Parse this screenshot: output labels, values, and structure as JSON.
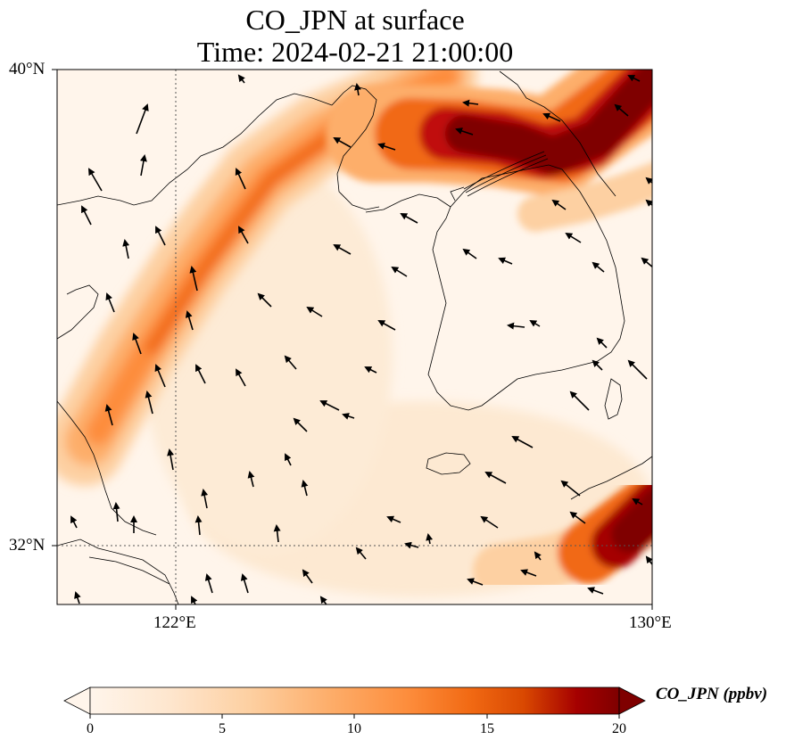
{
  "title": {
    "line1": "CO_JPN at surface",
    "line2": "Time: 2024-02-21 21:00:00"
  },
  "map": {
    "lon_range": [
      119,
      130
    ],
    "lat_range": [
      31,
      40
    ],
    "gridline_lon": 122,
    "gridline_lat": 32,
    "lon_ticks": [
      "122°E",
      "130°E"
    ],
    "lat_ticks": [
      "40°N",
      "32°N"
    ]
  },
  "colorbar": {
    "label": "CO_JPN (ppbv)",
    "ticks": [
      "0",
      "5",
      "10",
      "15",
      "20"
    ],
    "range": [
      0,
      20
    ],
    "extend": "both",
    "colors": [
      "#fff5eb",
      "#fee6ce",
      "#fdd0a2",
      "#fdae6b",
      "#fd8d3c",
      "#f16913",
      "#d94801",
      "#a50000",
      "#7f0000"
    ]
  },
  "chart_data": {
    "type": "heatmap",
    "title": "CO_JPN at surface",
    "subtitle": "Time: 2024-02-21 21:00:00",
    "xlabel": "",
    "ylabel": "",
    "variable": "CO_JPN",
    "units": "ppbv",
    "xlim": [
      119,
      130
    ],
    "ylim": [
      31,
      40
    ],
    "colorbar_range": [
      0,
      20
    ],
    "plumes": [
      {
        "description": "plume band",
        "path_lonlat": [
          [
            120.0,
            32.5
          ],
          [
            121.0,
            34.0
          ],
          [
            122.0,
            35.5
          ],
          [
            123.3,
            37.5
          ],
          [
            124.5,
            38.5
          ],
          [
            126.0,
            39.3
          ],
          [
            127.5,
            40.0
          ]
        ],
        "max_value": 12
      },
      {
        "description": "plume band",
        "path_lonlat": [
          [
            126.0,
            38.8
          ],
          [
            127.5,
            38.6
          ],
          [
            128.5,
            38.5
          ],
          [
            129.5,
            39.3
          ],
          [
            130.0,
            39.8
          ]
        ],
        "max_value": 25
      },
      {
        "description": "plume band",
        "path_lonlat": [
          [
            129.0,
            31.8
          ],
          [
            130.0,
            32.4
          ]
        ],
        "max_value": 25
      }
    ]
  }
}
